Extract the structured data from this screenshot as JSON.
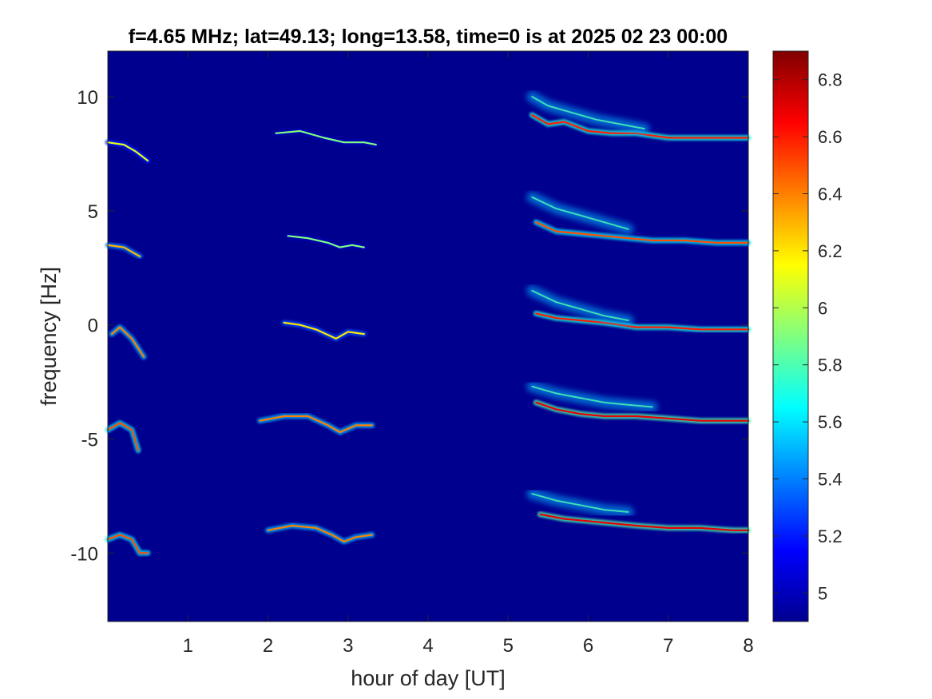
{
  "chart_data": {
    "type": "heatmap",
    "title": "f=4.65 MHz;  lat=49.13; long=13.58, time=0 is at 2025 02 23 00:00",
    "xlabel": "hour of day [UT]",
    "ylabel": "frequency [Hz]",
    "xlim": [
      0,
      8
    ],
    "ylim": [
      -13,
      12
    ],
    "x_ticks": [
      1,
      2,
      3,
      4,
      5,
      6,
      7,
      8
    ],
    "x_tick_labels": [
      "1",
      "2",
      "3",
      "4",
      "5",
      "6",
      "7",
      "8"
    ],
    "y_ticks": [
      10,
      5,
      0,
      -5,
      -10
    ],
    "y_tick_labels": [
      "10",
      "5",
      "0",
      "-5",
      "-10"
    ],
    "colormap": "jet",
    "background_color": "#00008f",
    "colorbar": {
      "range": [
        4.9,
        6.9
      ],
      "ticks": [
        6.8,
        6.6,
        6.4,
        6.2,
        6,
        5.8,
        5.6,
        5.4,
        5.2,
        5
      ],
      "tick_labels": [
        "6.8",
        "6.6",
        "6.4",
        "6.2",
        "6",
        "5.8",
        "5.6",
        "5.4",
        "5.2",
        "5"
      ],
      "colors": [
        "#00008f",
        "#0000ff",
        "#0080ff",
        "#00ffff",
        "#80ff80",
        "#ffff00",
        "#ff8000",
        "#ff0000",
        "#800000"
      ]
    },
    "traces": [
      {
        "name_hint": "early-top",
        "x": [
          0.0,
          0.2,
          0.35,
          0.5
        ],
        "y": [
          8.0,
          7.9,
          7.6,
          7.2
        ],
        "intensity": 6.1
      },
      {
        "name_hint": "early-2",
        "x": [
          0.0,
          0.2,
          0.4
        ],
        "y": [
          3.5,
          3.4,
          3.0
        ],
        "intensity": 6.3
      },
      {
        "name_hint": "early-3",
        "x": [
          0.05,
          0.15,
          0.3,
          0.45
        ],
        "y": [
          -0.4,
          -0.1,
          -0.6,
          -1.4
        ],
        "intensity": 6.4
      },
      {
        "name_hint": "early-4",
        "x": [
          0.0,
          0.15,
          0.3,
          0.38
        ],
        "y": [
          -4.6,
          -4.3,
          -4.6,
          -5.5
        ],
        "intensity": 6.5
      },
      {
        "name_hint": "early-5",
        "x": [
          0.0,
          0.15,
          0.3,
          0.4,
          0.5
        ],
        "y": [
          -9.4,
          -9.2,
          -9.4,
          -10.0,
          -10.0
        ],
        "intensity": 6.5
      },
      {
        "name_hint": "mid-top",
        "x": [
          2.1,
          2.4,
          2.7,
          2.95,
          3.2,
          3.35
        ],
        "y": [
          8.4,
          8.5,
          8.2,
          8.0,
          8.0,
          7.9
        ],
        "intensity": 5.9
      },
      {
        "name_hint": "mid-2",
        "x": [
          2.25,
          2.5,
          2.75,
          2.9,
          3.05,
          3.2
        ],
        "y": [
          3.9,
          3.8,
          3.6,
          3.4,
          3.5,
          3.4
        ],
        "intensity": 5.9
      },
      {
        "name_hint": "mid-3",
        "x": [
          2.2,
          2.4,
          2.6,
          2.85,
          3.0,
          3.2
        ],
        "y": [
          0.1,
          0.0,
          -0.2,
          -0.6,
          -0.3,
          -0.4
        ],
        "intensity": 6.2
      },
      {
        "name_hint": "mid-4",
        "x": [
          1.9,
          2.2,
          2.5,
          2.75,
          2.9,
          3.1,
          3.3
        ],
        "y": [
          -4.2,
          -4.0,
          -4.0,
          -4.4,
          -4.7,
          -4.4,
          -4.4
        ],
        "intensity": 6.4
      },
      {
        "name_hint": "mid-5",
        "x": [
          2.0,
          2.3,
          2.6,
          2.8,
          2.95,
          3.1,
          3.3
        ],
        "y": [
          -9.0,
          -8.8,
          -8.9,
          -9.2,
          -9.5,
          -9.3,
          -9.2
        ],
        "intensity": 6.4
      },
      {
        "name_hint": "late-top",
        "x": [
          5.3,
          5.5,
          5.7,
          6.0,
          6.3,
          6.6,
          7.0,
          7.4,
          7.8,
          8.0
        ],
        "y": [
          9.2,
          8.8,
          8.9,
          8.5,
          8.4,
          8.4,
          8.2,
          8.2,
          8.2,
          8.2
        ],
        "intensity": 6.6
      },
      {
        "name_hint": "late-top-diffuse",
        "x": [
          5.3,
          5.5,
          5.8,
          6.1,
          6.4,
          6.7
        ],
        "y": [
          10.0,
          9.6,
          9.3,
          9.0,
          8.8,
          8.6
        ],
        "intensity": 5.8
      },
      {
        "name_hint": "late-2",
        "x": [
          5.35,
          5.6,
          5.9,
          6.2,
          6.5,
          6.8,
          7.2,
          7.6,
          8.0
        ],
        "y": [
          4.5,
          4.1,
          4.0,
          3.9,
          3.8,
          3.7,
          3.7,
          3.6,
          3.6
        ],
        "intensity": 6.5
      },
      {
        "name_hint": "late-2-diffuse",
        "x": [
          5.3,
          5.6,
          5.9,
          6.2,
          6.5
        ],
        "y": [
          5.6,
          5.1,
          4.8,
          4.5,
          4.2
        ],
        "intensity": 5.8
      },
      {
        "name_hint": "late-3",
        "x": [
          5.35,
          5.6,
          5.9,
          6.2,
          6.6,
          7.0,
          7.4,
          7.8,
          8.0
        ],
        "y": [
          0.5,
          0.3,
          0.2,
          0.1,
          -0.1,
          -0.1,
          -0.2,
          -0.2,
          -0.2
        ],
        "intensity": 6.6
      },
      {
        "name_hint": "late-3-diffuse",
        "x": [
          5.3,
          5.6,
          5.9,
          6.2,
          6.5
        ],
        "y": [
          1.5,
          1.0,
          0.7,
          0.4,
          0.2
        ],
        "intensity": 5.8
      },
      {
        "name_hint": "late-4",
        "x": [
          5.35,
          5.6,
          5.9,
          6.2,
          6.6,
          7.0,
          7.4,
          7.8,
          8.0
        ],
        "y": [
          -3.4,
          -3.7,
          -3.9,
          -4.0,
          -4.0,
          -4.1,
          -4.2,
          -4.2,
          -4.2
        ],
        "intensity": 6.7
      },
      {
        "name_hint": "late-4-diffuse",
        "x": [
          5.3,
          5.6,
          5.9,
          6.2,
          6.5,
          6.8
        ],
        "y": [
          -2.7,
          -3.0,
          -3.2,
          -3.4,
          -3.5,
          -3.6
        ],
        "intensity": 5.8
      },
      {
        "name_hint": "late-5",
        "x": [
          5.4,
          5.7,
          6.0,
          6.3,
          6.6,
          7.0,
          7.4,
          7.8,
          8.0
        ],
        "y": [
          -8.3,
          -8.5,
          -8.6,
          -8.7,
          -8.8,
          -8.9,
          -8.9,
          -9.0,
          -9.0
        ],
        "intensity": 6.7
      },
      {
        "name_hint": "late-5-diffuse",
        "x": [
          5.3,
          5.6,
          5.9,
          6.2,
          6.5
        ],
        "y": [
          -7.4,
          -7.7,
          -7.9,
          -8.1,
          -8.2
        ],
        "intensity": 5.8
      }
    ]
  }
}
